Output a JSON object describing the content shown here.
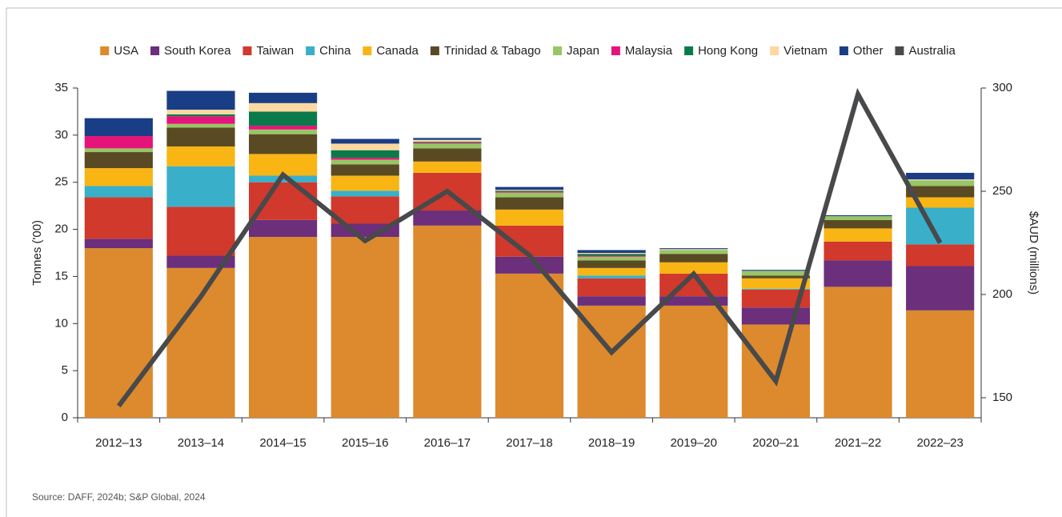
{
  "chart_data": {
    "type": "stacked-bar-line",
    "y_label": "Tonnes ('00)",
    "y2_label": "$AUD (millions)",
    "source": "Source: DAFF, 2024b; S&P Global, 2024",
    "categories": [
      "2012–13",
      "2013–14",
      "2014–15",
      "2015–16",
      "2016–17",
      "2017–18",
      "2018–19",
      "2019–20",
      "2020–21",
      "2021–22",
      "2022–23"
    ],
    "series": [
      {
        "name": "USA",
        "color": "#dc8a2d",
        "values": [
          18.0,
          15.9,
          19.2,
          19.2,
          20.4,
          15.3,
          11.9,
          11.9,
          9.9,
          13.9,
          11.4
        ]
      },
      {
        "name": "South Korea",
        "color": "#6b2f7b",
        "values": [
          1.0,
          1.3,
          1.8,
          1.4,
          1.6,
          1.8,
          1.0,
          1.0,
          1.8,
          2.8,
          4.7
        ]
      },
      {
        "name": "Taiwan",
        "color": "#d0392c",
        "values": [
          4.4,
          5.2,
          4.0,
          2.9,
          4.0,
          3.3,
          1.9,
          2.4,
          1.9,
          2.0,
          2.3
        ]
      },
      {
        "name": "China",
        "color": "#3aafc9",
        "values": [
          1.2,
          4.3,
          0.7,
          0.6,
          0,
          0,
          0.3,
          0,
          0.1,
          0,
          3.9
        ]
      },
      {
        "name": "Canada",
        "color": "#f8b514",
        "values": [
          1.9,
          2.1,
          2.3,
          1.6,
          1.2,
          1.7,
          0.8,
          1.2,
          1.1,
          1.4,
          1.1
        ]
      },
      {
        "name": "Trinidad & Tabago",
        "color": "#5a4a23",
        "values": [
          1.7,
          2.0,
          2.1,
          1.2,
          1.4,
          1.3,
          0.8,
          0.9,
          0.3,
          0.9,
          1.2
        ]
      },
      {
        "name": "Japan",
        "color": "#98c566",
        "values": [
          0.4,
          0.4,
          0.5,
          0.5,
          0.5,
          0.5,
          0.4,
          0.4,
          0.5,
          0.4,
          0.6
        ]
      },
      {
        "name": "Malaysia",
        "color": "#e5147a",
        "values": [
          1.3,
          0.8,
          0.4,
          0.2,
          0.1,
          0.1,
          0.1,
          0,
          0,
          0,
          0
        ]
      },
      {
        "name": "Hong Kong",
        "color": "#0b7a4a",
        "values": [
          0,
          0.2,
          1.5,
          0.8,
          0.1,
          0.1,
          0.2,
          0,
          0,
          0,
          0
        ]
      },
      {
        "name": "Vietnam",
        "color": "#fdd8a0",
        "values": [
          0,
          0.5,
          0.9,
          0.7,
          0.2,
          0.1,
          0.1,
          0.1,
          0,
          0,
          0.1
        ]
      },
      {
        "name": "Other",
        "color": "#1a3e86",
        "values": [
          1.9,
          2.0,
          1.1,
          0.5,
          0.2,
          0.3,
          0.3,
          0.1,
          0.1,
          0.1,
          0.7
        ]
      },
      {
        "name": "Australia",
        "color": "#48494b",
        "axis": "y2",
        "line": true,
        "values": [
          146,
          199,
          258,
          226,
          250,
          219,
          172,
          210,
          158,
          297,
          225
        ]
      }
    ],
    "ylim": [
      0,
      35
    ],
    "yticks": [
      0,
      5,
      10,
      15,
      20,
      25,
      30,
      35
    ],
    "y2lim": [
      140.3,
      300
    ],
    "y2ticks": [
      150,
      200,
      250,
      300
    ]
  }
}
